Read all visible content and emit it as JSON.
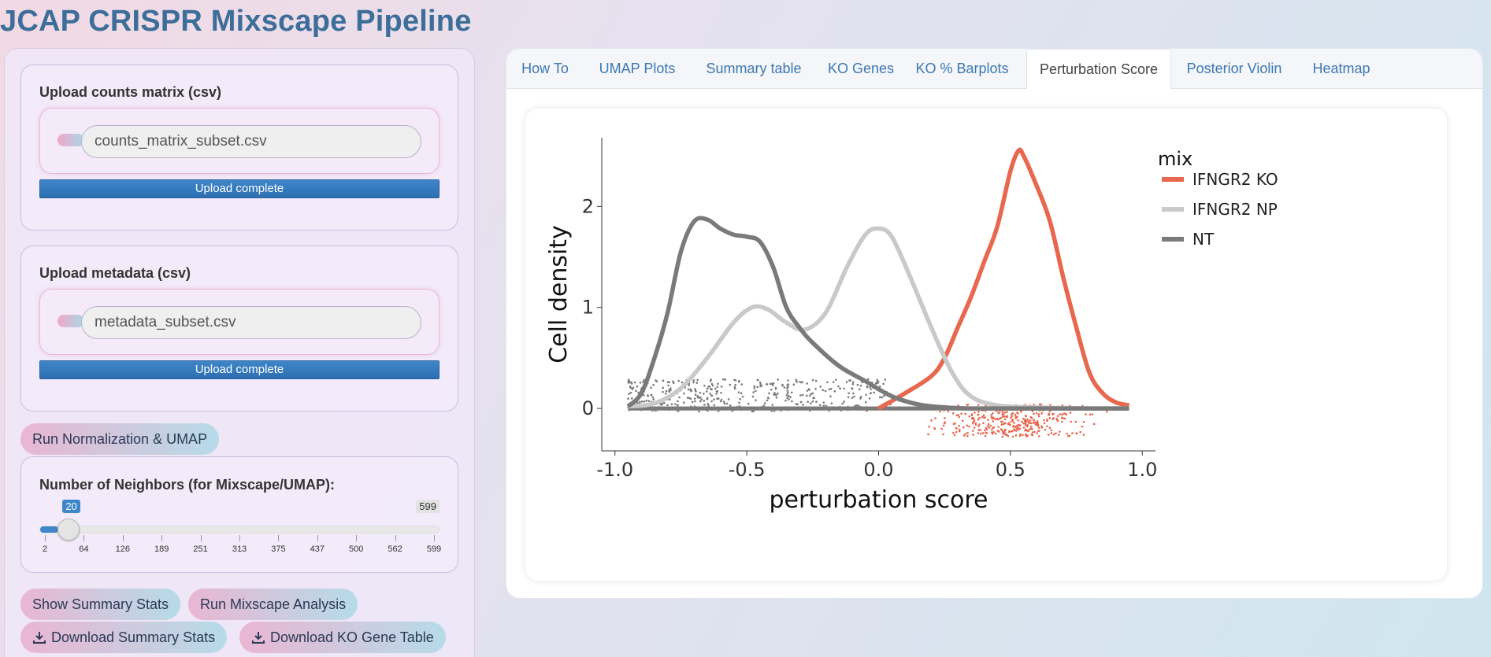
{
  "app": {
    "title": "JCAP CRISPR Mixscape Pipeline"
  },
  "sidebar": {
    "counts_upload": {
      "label": "Upload counts matrix (csv)",
      "file_name": "counts_matrix_subset.csv",
      "status": "Upload complete"
    },
    "metadata_upload": {
      "label": "Upload metadata (csv)",
      "file_name": "metadata_subset.csv",
      "status": "Upload complete"
    },
    "run_norm_button": "Run Normalization & UMAP",
    "neighbors_slider": {
      "label": "Number of Neighbors (for Mixscape/UMAP):",
      "min": 2,
      "max": 599,
      "value": 20,
      "min_label": "2",
      "max_label": "599",
      "value_label": "20",
      "ticks": [
        "2",
        "64",
        "126",
        "189",
        "251",
        "313",
        "375",
        "437",
        "500",
        "562",
        "599"
      ]
    },
    "show_summary_button": "Show Summary Stats",
    "run_mixscape_button": "Run Mixscape Analysis",
    "download_summary_button": "Download Summary Stats",
    "download_ko_button": "Download KO Gene Table"
  },
  "tabs": [
    {
      "label": "How To",
      "active": false
    },
    {
      "label": "UMAP Plots",
      "active": false
    },
    {
      "label": "Summary table",
      "active": false
    },
    {
      "label": "KO Genes",
      "active": false
    },
    {
      "label": "KO % Barplots",
      "active": false
    },
    {
      "label": "Perturbation Score",
      "active": true
    },
    {
      "label": "Posterior Violin",
      "active": false
    },
    {
      "label": "Heatmap",
      "active": false
    }
  ],
  "chart_data": {
    "type": "line",
    "title": "",
    "xlabel": "perturbation score",
    "ylabel": "Cell density",
    "xlim": [
      -1.05,
      1.05
    ],
    "ylim": [
      -0.42,
      2.68
    ],
    "xticks": [
      -1.0,
      -0.5,
      0.0,
      0.5,
      1.0
    ],
    "xtick_labels": [
      "-1.0",
      "-0.5",
      "0.0",
      "0.5",
      "1.0"
    ],
    "yticks": [
      0,
      1,
      2
    ],
    "ytick_labels": [
      "0",
      "1",
      "2"
    ],
    "legend_title": "mix",
    "legend_position": "right",
    "series": [
      {
        "name": "IFNGR2 KO",
        "color": "#e8674f",
        "x": [
          0.0,
          0.1,
          0.2,
          0.25,
          0.3,
          0.35,
          0.4,
          0.45,
          0.5,
          0.53,
          0.55,
          0.6,
          0.65,
          0.7,
          0.75,
          0.8,
          0.85,
          0.9,
          0.95
        ],
        "y": [
          0.0,
          0.15,
          0.32,
          0.5,
          0.8,
          1.1,
          1.45,
          1.8,
          2.35,
          2.55,
          2.5,
          2.2,
          1.85,
          1.3,
          0.8,
          0.35,
          0.15,
          0.06,
          0.03
        ]
      },
      {
        "name": "IFNGR2 NP",
        "color": "#c9c9c9",
        "x": [
          -0.95,
          -0.85,
          -0.75,
          -0.65,
          -0.55,
          -0.48,
          -0.42,
          -0.35,
          -0.28,
          -0.2,
          -0.12,
          -0.05,
          0.0,
          0.05,
          0.12,
          0.2,
          0.28,
          0.35,
          0.45,
          0.6,
          0.8,
          0.95
        ],
        "y": [
          0.02,
          0.05,
          0.2,
          0.5,
          0.85,
          1.0,
          0.98,
          0.85,
          0.78,
          0.95,
          1.4,
          1.72,
          1.78,
          1.7,
          1.3,
          0.8,
          0.35,
          0.12,
          0.03,
          0.01,
          0.0,
          0.0
        ]
      },
      {
        "name": "NT",
        "color": "#7a7a7a",
        "x": [
          -0.95,
          -0.9,
          -0.85,
          -0.8,
          -0.75,
          -0.7,
          -0.65,
          -0.6,
          -0.55,
          -0.5,
          -0.45,
          -0.4,
          -0.35,
          -0.3,
          -0.25,
          -0.15,
          -0.05,
          0.05,
          0.15,
          0.25,
          0.35,
          0.5,
          0.7,
          0.95
        ],
        "y": [
          0.02,
          0.15,
          0.5,
          0.95,
          1.55,
          1.85,
          1.87,
          1.78,
          1.72,
          1.7,
          1.65,
          1.4,
          1.0,
          0.8,
          0.65,
          0.42,
          0.27,
          0.12,
          0.04,
          0.01,
          0.0,
          0.0,
          0.0,
          0.0
        ]
      }
    ]
  }
}
